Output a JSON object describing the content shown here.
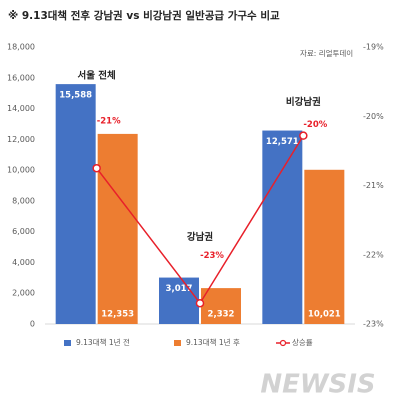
{
  "chart_data": {
    "type": "bar",
    "title": "※ 9.13대책 전후 강남권 vs 비강남권 일반공급 가구수 비교",
    "source": "자료: 리얼투데이",
    "watermark": "NEWSIS",
    "categories": [
      "서울 전체",
      "강남권",
      "비강남권"
    ],
    "series": [
      {
        "name": "9.13대책 1년 전",
        "color": "#4472c4",
        "values": [
          15588,
          3017,
          12571
        ],
        "value_labels": [
          "15,588",
          "3,017",
          "12,571"
        ]
      },
      {
        "name": "9.13대책 1년 후",
        "color": "#ed7d31",
        "values": [
          12353,
          2332,
          10021
        ],
        "value_labels": [
          "12,353",
          "2,332",
          "10,021"
        ]
      },
      {
        "name": "상승률",
        "type": "line",
        "axis": "y2",
        "color": "#e8202a",
        "values": [
          -20.75,
          -22.7,
          -20.28
        ],
        "value_labels": [
          "-21%",
          "-23%",
          "-20%"
        ]
      }
    ],
    "ylim": [
      0,
      18000
    ],
    "yticks": [
      0,
      {
        "value": 2000,
        "label": "2,000"
      },
      {
        "value": 4000,
        "label": "4,000"
      },
      {
        "value": 6000,
        "label": "6,000"
      },
      {
        "value": 8000,
        "label": "8,000"
      },
      {
        "value": 10000,
        "label": "10,000"
      },
      {
        "value": 12000,
        "label": "12,000"
      },
      {
        "value": 14000,
        "label": "14,000"
      },
      {
        "value": 16000,
        "label": "16,000"
      },
      {
        "value": 18000,
        "label": "18,000"
      }
    ],
    "y2lim": [
      -23,
      -19
    ],
    "y2ticks": [
      {
        "value": -23,
        "label": "-23%"
      },
      {
        "value": -22,
        "label": "-22%"
      },
      {
        "value": -21,
        "label": "-21%"
      },
      {
        "value": -20,
        "label": "-20%"
      },
      {
        "value": -19,
        "label": "-19%"
      }
    ],
    "grid": false
  }
}
